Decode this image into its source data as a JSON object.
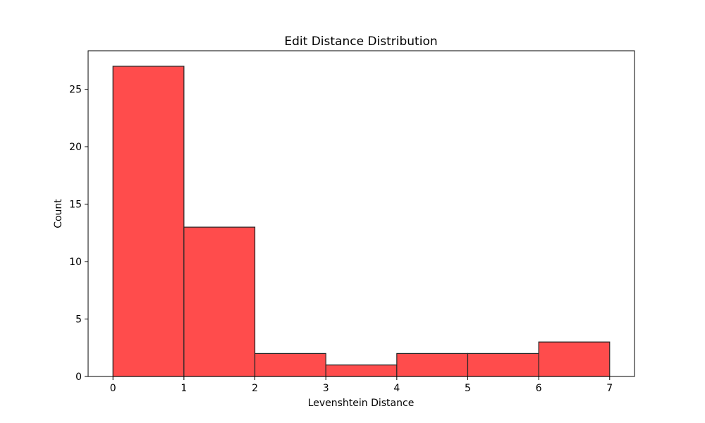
{
  "chart_data": {
    "type": "bar",
    "title": "Edit Distance Distribution",
    "xlabel": "Levenshtein Distance",
    "ylabel": "Count",
    "bin_edges": [
      0,
      1,
      2,
      3,
      4,
      5,
      6,
      7
    ],
    "counts": [
      27,
      13,
      2,
      1,
      2,
      2,
      3
    ],
    "xlim": [
      -0.35,
      7.35
    ],
    "ylim": [
      0,
      28.35
    ],
    "x_ticks": [
      0,
      1,
      2,
      3,
      4,
      5,
      6,
      7
    ],
    "y_ticks": [
      0,
      5,
      10,
      15,
      20,
      25
    ],
    "bar_color": "#ff4c4c",
    "edge_color": "#262626",
    "grid": false,
    "legend": "none"
  }
}
